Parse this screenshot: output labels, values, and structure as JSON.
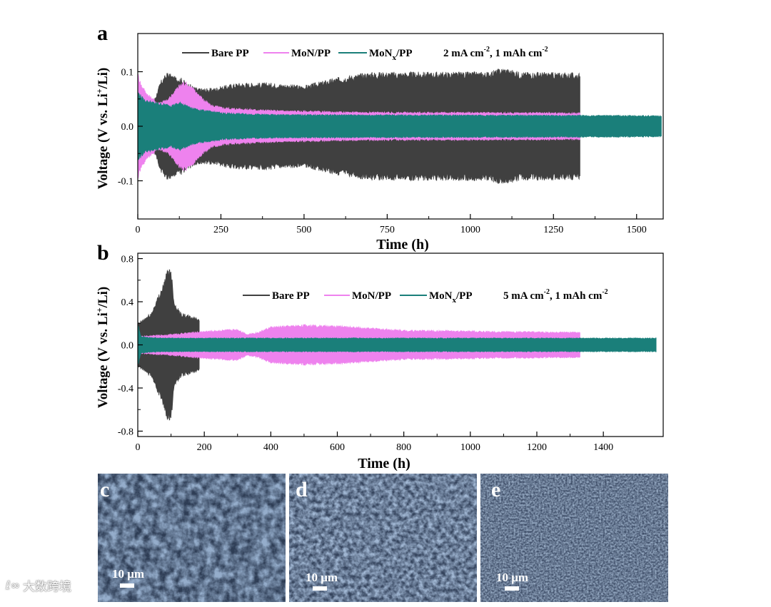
{
  "chart_data": [
    {
      "type": "line",
      "panel_label": "a",
      "title": "",
      "annotation": {
        "main": "2 mA cm",
        "sup1": "-2",
        "mid": ", 1 mAh cm",
        "sup2": "-2"
      },
      "xlabel": "Time (h)",
      "ylabel_parts": {
        "pre": "Voltage (V vs. Li",
        "sup": "+",
        "post": "/Li)"
      },
      "xlim": [
        0,
        1580
      ],
      "ylim": [
        -0.17,
        0.17
      ],
      "x_ticks": [
        0,
        250,
        500,
        750,
        1000,
        1250,
        1500
      ],
      "y_ticks": [
        -0.1,
        0.0,
        0.1
      ],
      "y_tick_labels": [
        "-0.1",
        "0.0",
        "0.1"
      ],
      "series": [
        {
          "name": "Bare PP",
          "color": "#404040",
          "end_time": 1330,
          "envelope": [
            [
              0,
              0.02
            ],
            [
              20,
              0.04
            ],
            [
              50,
              0.05
            ],
            [
              70,
              0.085
            ],
            [
              90,
              0.1
            ],
            [
              110,
              0.092
            ],
            [
              130,
              0.09
            ],
            [
              150,
              0.08
            ],
            [
              180,
              0.07
            ],
            [
              200,
              0.07
            ],
            [
              220,
              0.07
            ],
            [
              260,
              0.075
            ],
            [
              300,
              0.08
            ],
            [
              400,
              0.08
            ],
            [
              500,
              0.075
            ],
            [
              600,
              0.09
            ],
            [
              700,
              0.1
            ],
            [
              800,
              0.1
            ],
            [
              900,
              0.1
            ],
            [
              1000,
              0.1
            ],
            [
              1050,
              0.1
            ],
            [
              1100,
              0.108
            ],
            [
              1150,
              0.1
            ],
            [
              1200,
              0.1
            ],
            [
              1330,
              0.098
            ]
          ]
        },
        {
          "name": "MoN/PP",
          "color": "#ee82ee",
          "end_time": 1330,
          "envelope": [
            [
              0,
              0.1
            ],
            [
              10,
              0.08
            ],
            [
              30,
              0.06
            ],
            [
              60,
              0.045
            ],
            [
              90,
              0.05
            ],
            [
              120,
              0.075
            ],
            [
              140,
              0.085
            ],
            [
              170,
              0.07
            ],
            [
              200,
              0.05
            ],
            [
              220,
              0.04
            ],
            [
              260,
              0.035
            ],
            [
              400,
              0.03
            ],
            [
              600,
              0.027
            ],
            [
              800,
              0.026
            ],
            [
              1000,
              0.026
            ],
            [
              1330,
              0.025
            ]
          ]
        },
        {
          "name": "MoNx/PP",
          "name_parts": {
            "pre": "MoN",
            "sub": "x",
            "post": "/PP"
          },
          "color": "#1a7f7a",
          "end_time": 1575,
          "envelope": [
            [
              0,
              0.065
            ],
            [
              20,
              0.05
            ],
            [
              50,
              0.045
            ],
            [
              100,
              0.04
            ],
            [
              130,
              0.045
            ],
            [
              160,
              0.035
            ],
            [
              200,
              0.03
            ],
            [
              260,
              0.025
            ],
            [
              400,
              0.022
            ],
            [
              1575,
              0.02
            ]
          ]
        }
      ]
    },
    {
      "type": "line",
      "panel_label": "b",
      "title": "",
      "annotation": {
        "main": "5 mA cm",
        "sup1": "-2",
        "mid": ", 1 mAh cm",
        "sup2": "-2"
      },
      "xlabel": "Time (h)",
      "ylabel_parts": {
        "pre": "Voltage (V vs. Li",
        "sup": "+",
        "post": "/Li)"
      },
      "xlim": [
        0,
        1580
      ],
      "ylim": [
        -0.85,
        0.85
      ],
      "x_ticks": [
        0,
        200,
        400,
        600,
        800,
        1000,
        1200,
        1400
      ],
      "y_ticks": [
        -0.8,
        -0.4,
        0.0,
        0.4,
        0.8
      ],
      "y_tick_labels": [
        "-0.8",
        "-0.4",
        "0.0",
        "0.4",
        "0.8"
      ],
      "series": [
        {
          "name": "Bare PP",
          "color": "#404040",
          "end_time": 185,
          "envelope": [
            [
              0,
              0.2
            ],
            [
              20,
              0.25
            ],
            [
              40,
              0.3
            ],
            [
              60,
              0.45
            ],
            [
              80,
              0.6
            ],
            [
              90,
              0.72
            ],
            [
              100,
              0.72
            ],
            [
              110,
              0.4
            ],
            [
              130,
              0.3
            ],
            [
              150,
              0.28
            ],
            [
              185,
              0.25
            ]
          ]
        },
        {
          "name": "MoN/PP",
          "color": "#ee82ee",
          "end_time": 1330,
          "envelope": [
            [
              0,
              0.08
            ],
            [
              50,
              0.09
            ],
            [
              100,
              0.1
            ],
            [
              200,
              0.13
            ],
            [
              300,
              0.15
            ],
            [
              330,
              0.1
            ],
            [
              360,
              0.12
            ],
            [
              400,
              0.17
            ],
            [
              500,
              0.19
            ],
            [
              600,
              0.18
            ],
            [
              700,
              0.16
            ],
            [
              800,
              0.14
            ],
            [
              1000,
              0.13
            ],
            [
              1330,
              0.12
            ]
          ]
        },
        {
          "name": "MoNx/PP",
          "name_parts": {
            "pre": "MoN",
            "sub": "x",
            "post": "/PP"
          },
          "color": "#1a7f7a",
          "end_time": 1560,
          "envelope": [
            [
              0,
              0.2
            ],
            [
              10,
              0.08
            ],
            [
              40,
              0.07
            ],
            [
              100,
              0.065
            ],
            [
              1560,
              0.065
            ]
          ]
        }
      ]
    }
  ],
  "sem_panels": [
    {
      "label": "c",
      "scale_text": "10 μm"
    },
    {
      "label": "d",
      "scale_text": "10 μm"
    },
    {
      "label": "e",
      "scale_text": "10 μm"
    }
  ],
  "watermark": {
    "logo": "ℓ∞",
    "text": "大数跨境"
  }
}
